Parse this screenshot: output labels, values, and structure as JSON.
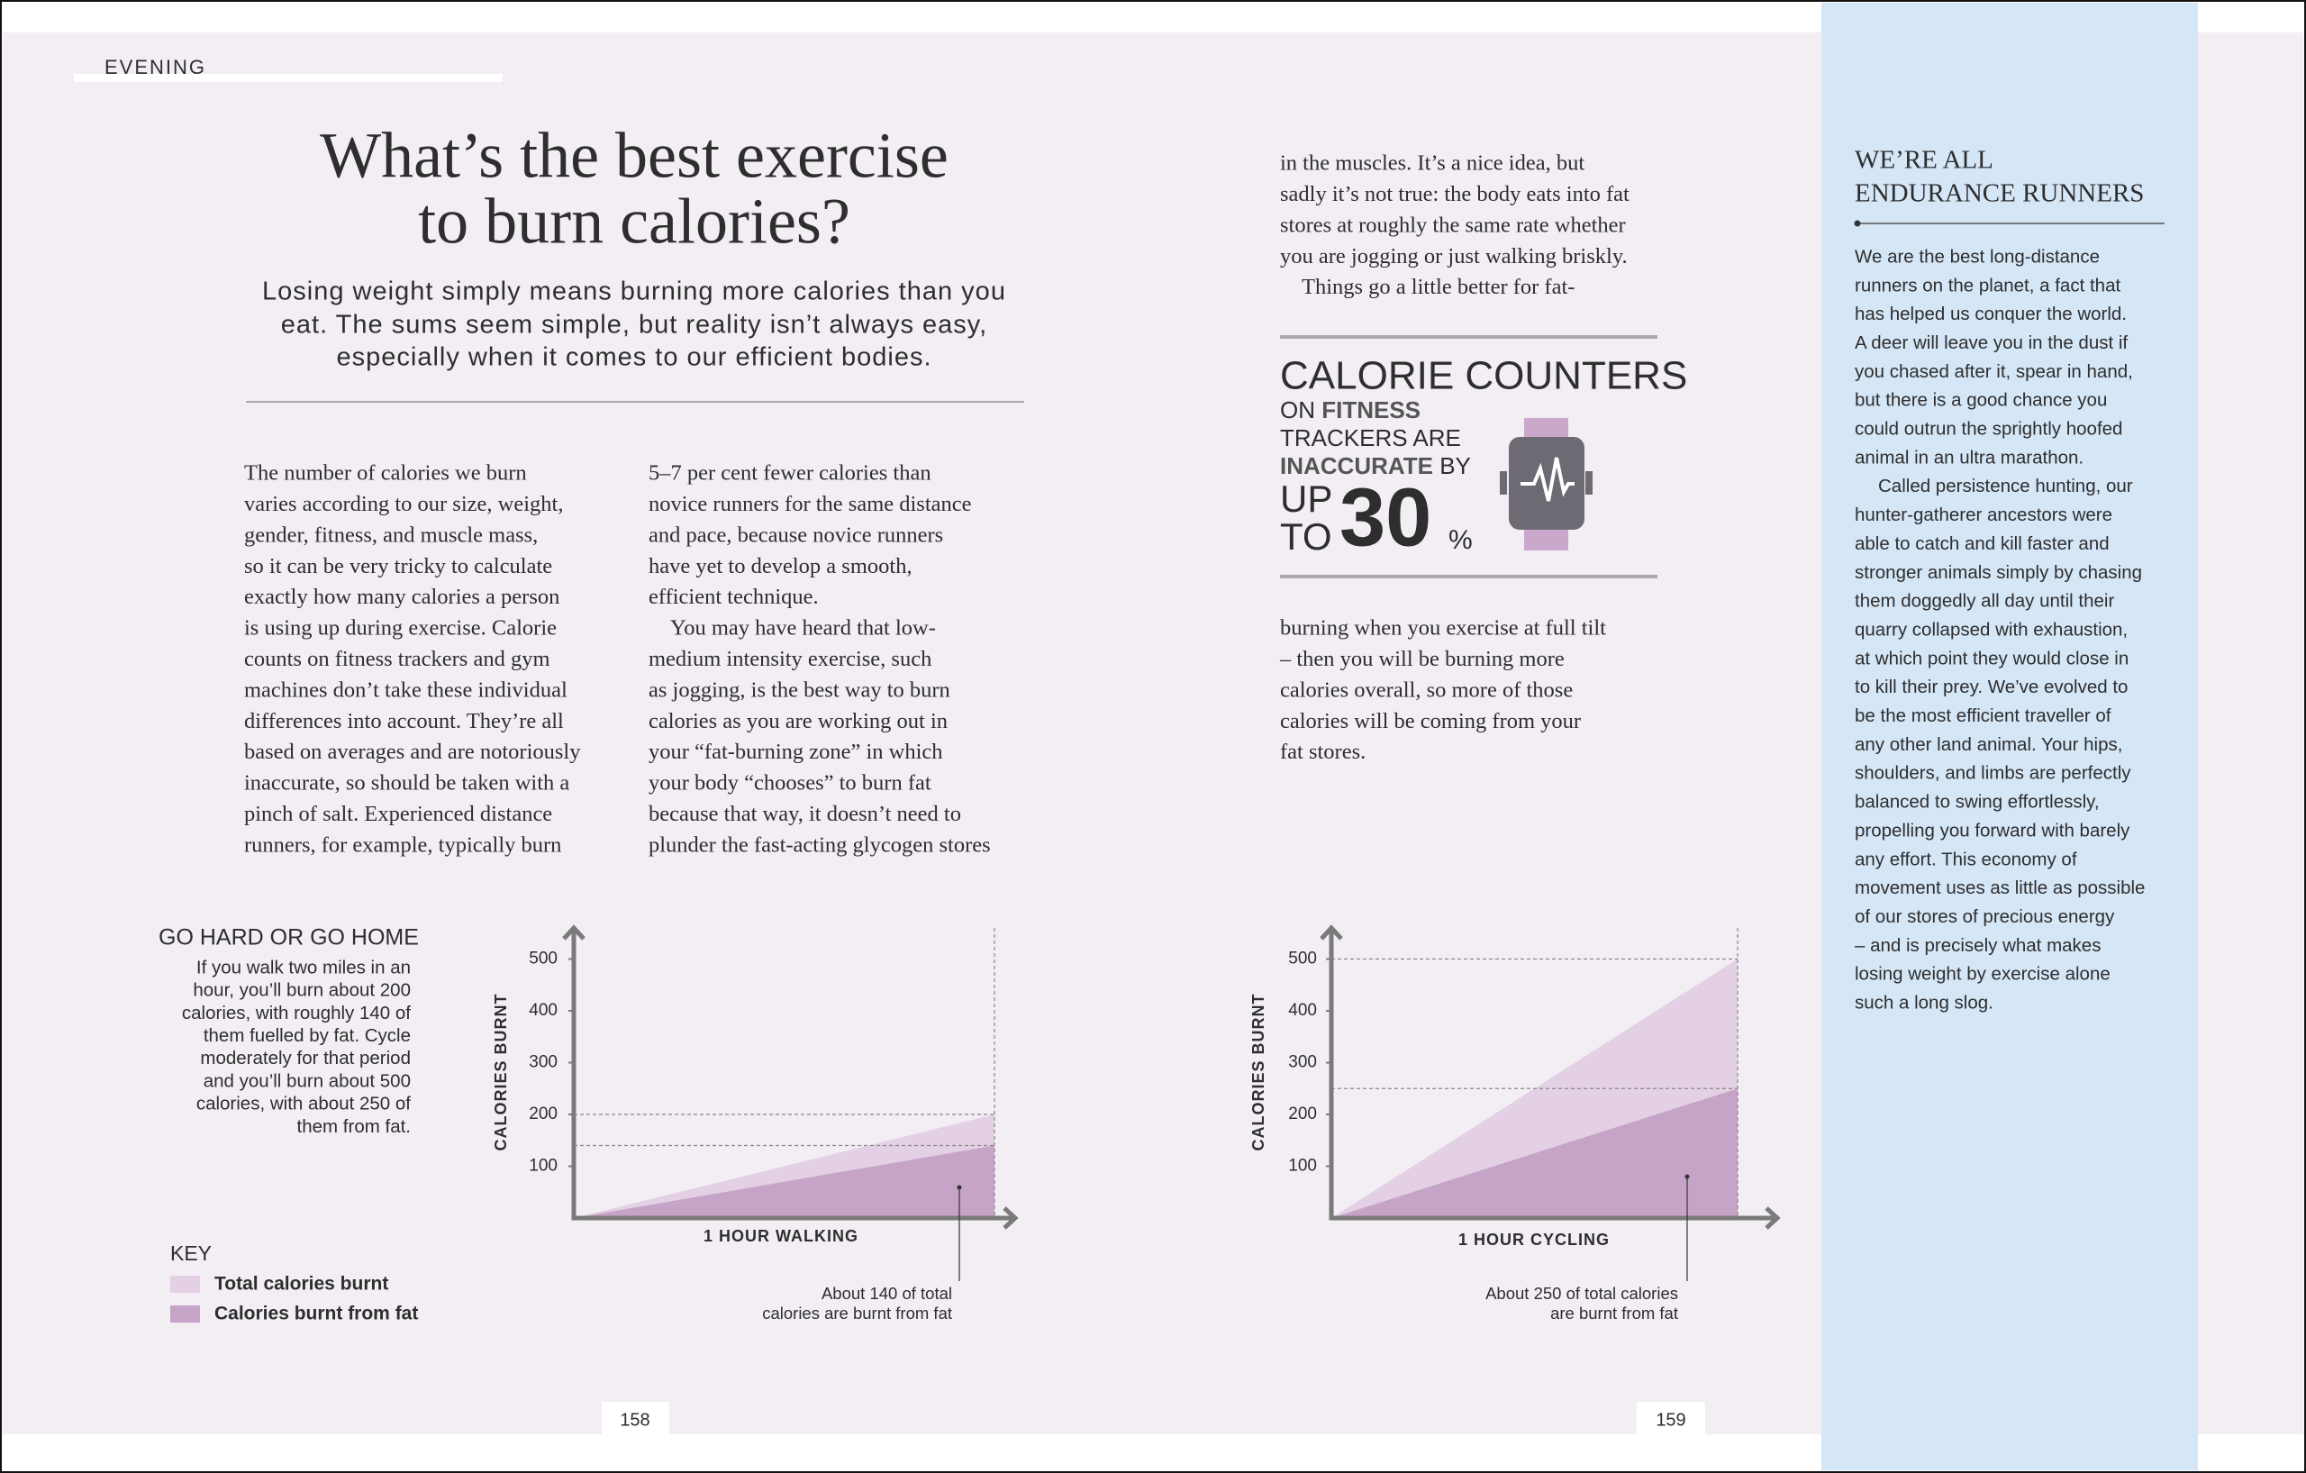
{
  "header": {
    "section": "EVENING"
  },
  "title": [
    "What’s the best exercise",
    "to burn calories?"
  ],
  "subtitle": [
    "Losing weight simply means burning more calories than you",
    "eat. The sums seem simple, but reality isn’t always easy,",
    "especially when it comes to our efficient bodies."
  ],
  "columns": [
    {
      "paragraphs": [
        [
          "The number of calories we burn",
          "varies according to our size, weight,",
          "gender, fitness, and muscle mass,",
          "so it can be very tricky to calculate",
          "exactly how many calories a person",
          "is using up during exercise. Calorie",
          "counts on fitness trackers and gym",
          "machines don’t take these individual",
          "differences into account. They’re all",
          "based on averages and are notoriously",
          "inaccurate, so should be taken with a",
          "pinch of salt. Experienced distance",
          "runners, for example, typically burn"
        ]
      ]
    },
    {
      "paragraphs": [
        [
          "5–7 per cent fewer calories than",
          "novice runners for the same distance",
          "and pace, because novice runners",
          "have yet to develop a smooth,",
          "efficient technique."
        ],
        [
          "You may have heard that low-",
          "medium intensity exercise, such",
          "as jogging, is the best way to burn",
          "calories as you are working out in",
          "your “fat-burning zone” in which",
          "your body “chooses” to burn fat",
          "because that way, it doesn’t need to",
          "plunder the fast-acting glycogen stores"
        ]
      ]
    },
    {
      "paragraphs": [
        [
          "in the muscles. It’s a nice idea, but",
          "sadly it’s not true: the body eats into fat",
          "stores at roughly the same rate whether",
          "you are jogging or just walking briskly."
        ],
        [
          "Things go a little better for fat-"
        ]
      ]
    },
    {
      "paragraphs": [
        [
          "burning when you exercise at full tilt",
          "– then you will be burning more",
          "calories overall, so more of those",
          "calories will be coming from your",
          "fat stores."
        ]
      ]
    }
  ],
  "callout": {
    "headline": "CALORIE COUNTERS",
    "on": "ON",
    "fitness": "FITNESS",
    "trackers": "TRACKERS ARE",
    "inaccurate": "INACCURATE",
    "by": "BY",
    "up": "UP",
    "to": "TO",
    "number": 30,
    "percent": "%"
  },
  "sidebar": {
    "title": [
      "WE’RE ALL",
      "ENDURANCE RUNNERS"
    ],
    "paragraphs": [
      [
        "We are the best long-distance",
        "runners on the planet, a fact that",
        "has helped us conquer the world.",
        "A deer will leave you in the dust if",
        "you chased after it, spear in hand,",
        "but there is a good chance you",
        "could outrun the sprightly hoofed",
        "animal in an ultra marathon."
      ],
      [
        "Called persistence hunting, our",
        "hunter-gatherer ancestors were",
        "able to catch and kill faster and",
        "stronger animals simply by chasing",
        "them doggedly all day until their",
        "quarry collapsed with exhaustion,",
        "at which point they would close in",
        "to kill their prey. We’ve evolved to",
        "be the most efficient traveller of",
        "any other land animal. Your hips,",
        "shoulders, and limbs are perfectly",
        "balanced to swing effortlessly,",
        "propelling you forward with barely",
        "any effort. This economy of",
        "movement uses as little as possible",
        "of our stores of precious energy",
        "– and is precisely what makes",
        "losing weight by exercise alone",
        "such a long slog."
      ]
    ]
  },
  "chart_intro": {
    "title": "GO HARD OR GO HOME",
    "text": [
      "If you walk two miles in an",
      "hour, you’ll burn about 200",
      "calories, with roughly 140 of",
      "them fuelled by fat. Cycle",
      "moderately for that period",
      "and you’ll burn about 500",
      "calories, with about 250 of",
      "them from fat."
    ]
  },
  "legend_title": "KEY",
  "chart_data": [
    {
      "type": "area",
      "x_label": "1 HOUR WALKING",
      "y_label": "CALORIES BURNT",
      "x": [
        0,
        1
      ],
      "xlim": [
        0,
        1
      ],
      "ylim": [
        0,
        560
      ],
      "yticks": [
        100,
        200,
        300,
        400,
        500
      ],
      "series": [
        {
          "name": "Total calories burnt",
          "color": "#e3d0e4",
          "values": [
            0,
            200
          ]
        },
        {
          "name": "Calories burnt from fat",
          "color": "#c5a4c7",
          "values": [
            0,
            140
          ]
        }
      ],
      "annotation": [
        "About 140 of total",
        "calories are burnt from fat"
      ]
    },
    {
      "type": "area",
      "x_label": "1 HOUR CYCLING",
      "y_label": "CALORIES BURNT",
      "x": [
        0,
        1
      ],
      "xlim": [
        0,
        1
      ],
      "ylim": [
        0,
        560
      ],
      "yticks": [
        100,
        200,
        300,
        400,
        500
      ],
      "series": [
        {
          "name": "Total calories burnt",
          "color": "#e3d0e4",
          "values": [
            0,
            500
          ]
        },
        {
          "name": "Calories burnt from fat",
          "color": "#c5a4c7",
          "values": [
            0,
            250
          ]
        }
      ],
      "annotation": [
        "About 250 of total calories",
        "are burnt from fat"
      ]
    }
  ],
  "page_numbers": [
    158,
    159
  ]
}
